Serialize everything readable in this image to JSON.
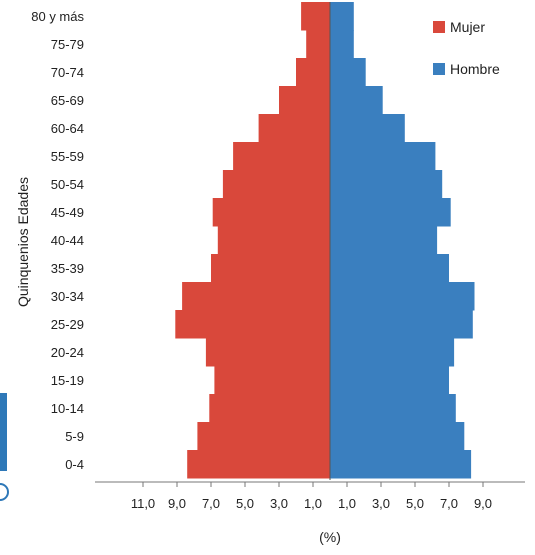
{
  "chart_data": {
    "type": "bar",
    "orientation": "horizontal",
    "subtype": "population-pyramid",
    "categories": [
      "0-4",
      "5-9",
      "10-14",
      "15-19",
      "20-24",
      "25-29",
      "30-34",
      "35-39",
      "40-44",
      "45-49",
      "50-54",
      "55-59",
      "60-64",
      "65-69",
      "70-74",
      "75-79",
      "80 y más"
    ],
    "series": [
      {
        "name": "Mujer",
        "color": "#d9483b",
        "side": "left",
        "values": [
          8.4,
          7.8,
          7.1,
          6.8,
          7.3,
          9.1,
          8.7,
          7.0,
          6.6,
          6.9,
          6.3,
          5.7,
          4.2,
          3.0,
          2.0,
          1.4,
          1.7
        ]
      },
      {
        "name": "Hombre",
        "color": "#3a7fbf",
        "side": "right",
        "values": [
          8.3,
          7.9,
          7.4,
          7.0,
          7.3,
          8.4,
          8.5,
          7.0,
          6.3,
          7.1,
          6.6,
          6.2,
          4.4,
          3.1,
          2.1,
          1.4,
          1.4
        ]
      }
    ],
    "xticks": [
      "11,0",
      "9,0",
      "7,0",
      "5,0",
      "3,0",
      "1,0",
      "1,0",
      "3,0",
      "5,0",
      "7,0",
      "9,0"
    ],
    "xtick_values": [
      -11,
      -9,
      -7,
      -5,
      -3,
      -1,
      1,
      3,
      5,
      7,
      9
    ],
    "xlim": [
      -11,
      9.5
    ],
    "xlabel": "(%)",
    "ylabel": "Quinquenios  Edades",
    "grid": false,
    "legend_position": "top-right"
  }
}
